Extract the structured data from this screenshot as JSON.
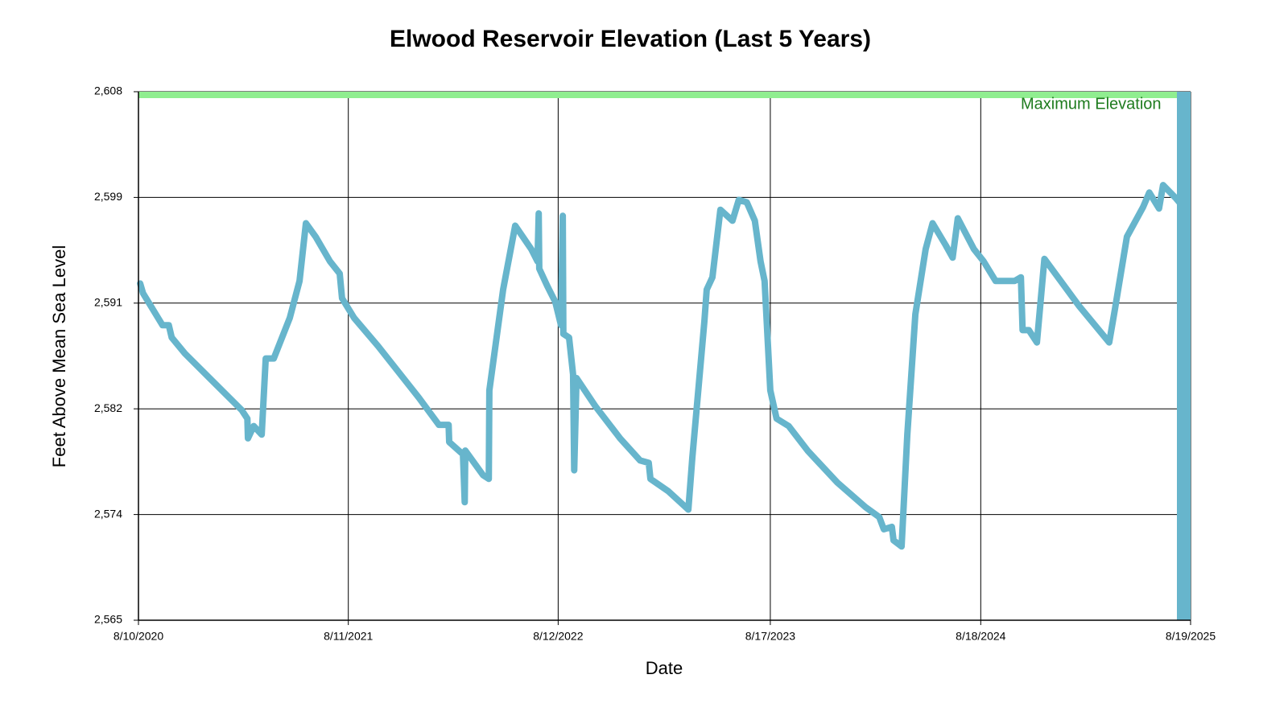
{
  "chart_data": {
    "type": "line",
    "title": "Elwood Reservoir Elevation (Last 5 Years)",
    "x_label": "Date",
    "y_label": "Feet Above Mean Sea Level",
    "x": [
      "2020-08-13",
      "2020-08-18",
      "2020-09-04",
      "2020-09-21",
      "2020-10-02",
      "2020-10-07",
      "2020-10-30",
      "2020-12-12",
      "2021-02-06",
      "2021-02-16",
      "2021-02-17",
      "2021-02-27",
      "2021-03-13",
      "2021-03-20",
      "2021-04-03",
      "2021-05-01",
      "2021-05-18",
      "2021-05-29",
      "2021-06-15",
      "2021-07-10",
      "2021-07-27",
      "2021-07-31",
      "2021-08-21",
      "2021-10-02",
      "2021-12-12",
      "2022-01-16",
      "2022-02-02",
      "2022-02-03",
      "2022-02-27",
      "2022-03-02",
      "2022-03-03",
      "2022-04-03",
      "2022-04-13",
      "2022-04-14",
      "2022-05-08",
      "2022-05-29",
      "2022-06-26",
      "2022-07-07",
      "2022-07-09",
      "2022-07-10",
      "2022-07-24",
      "2022-08-07",
      "2022-08-17",
      "2022-08-20",
      "2022-08-21",
      "2022-08-31",
      "2022-09-07",
      "2022-09-09",
      "2022-09-13",
      "2022-10-16",
      "2022-11-28",
      "2023-01-02",
      "2023-01-17",
      "2023-01-20",
      "2023-02-20",
      "2023-03-27",
      "2023-04-03",
      "2023-04-24",
      "2023-04-28",
      "2023-05-08",
      "2023-05-22",
      "2023-06-12",
      "2023-06-23",
      "2023-07-07",
      "2023-07-21",
      "2023-07-31",
      "2023-08-07",
      "2023-08-17",
      "2023-08-28",
      "2023-09-18",
      "2023-10-21",
      "2023-12-12",
      "2024-01-30",
      "2024-02-23",
      "2024-03-02",
      "2024-03-16",
      "2024-03-19",
      "2024-04-02",
      "2024-04-12",
      "2024-04-26",
      "2024-05-14",
      "2024-05-26",
      "2024-06-18",
      "2024-06-30",
      "2024-07-09",
      "2024-08-06",
      "2024-08-23",
      "2024-09-13",
      "2024-10-16",
      "2024-10-27",
      "2024-10-30",
      "2024-11-10",
      "2024-11-24",
      "2024-12-07",
      "2025-02-05",
      "2025-03-30",
      "2025-04-09",
      "2025-04-30",
      "2025-05-28",
      "2025-06-08",
      "2025-06-25",
      "2025-07-02",
      "2025-07-23",
      "2025-08-03"
    ],
    "series": [
      {
        "name": "Elevation",
        "color": "#67b5cc",
        "values": [
          2592.4,
          2591.6,
          2590.3,
          2589.0,
          2589.0,
          2588.0,
          2586.7,
          2584.7,
          2582.1,
          2581.4,
          2579.8,
          2580.8,
          2580.1,
          2586.3,
          2586.3,
          2589.6,
          2592.6,
          2597.3,
          2596.2,
          2594.2,
          2593.2,
          2591.2,
          2589.6,
          2587.3,
          2583.1,
          2580.9,
          2580.9,
          2579.5,
          2578.5,
          2574.6,
          2578.8,
          2576.8,
          2576.5,
          2583.7,
          2591.9,
          2597.1,
          2595.2,
          2594.2,
          2598.1,
          2593.6,
          2592.2,
          2590.9,
          2589.0,
          2597.9,
          2588.3,
          2588.0,
          2585.0,
          2577.2,
          2584.7,
          2582.4,
          2579.8,
          2578.0,
          2577.8,
          2576.5,
          2575.5,
          2574.0,
          2578.2,
          2589.3,
          2591.9,
          2592.9,
          2598.4,
          2597.5,
          2599.2,
          2599.0,
          2597.5,
          2594.2,
          2592.6,
          2583.7,
          2581.4,
          2580.8,
          2578.8,
          2576.2,
          2574.2,
          2573.4,
          2572.4,
          2572.6,
          2571.5,
          2571.0,
          2580.1,
          2589.9,
          2595.2,
          2597.3,
          2595.5,
          2594.5,
          2597.7,
          2595.2,
          2594.2,
          2592.6,
          2592.6,
          2592.9,
          2588.6,
          2588.6,
          2587.6,
          2594.4,
          2590.6,
          2587.6,
          2590.3,
          2596.2,
          2598.6,
          2599.8,
          2598.5,
          2600.4,
          2599.4,
          2598.8
        ]
      }
    ],
    "max_elevation": 2608,
    "max_elevation_label": "Maximum Elevation",
    "max_elevation_color": "#90ee90",
    "xlim": [
      "2020-08-10",
      "2025-08-19"
    ],
    "xticks": [
      {
        "value": "2020-08-10",
        "label": "8/10/2020"
      },
      {
        "value": "2021-08-11",
        "label": "8/11/2021"
      },
      {
        "value": "2022-08-12",
        "label": "8/12/2022"
      },
      {
        "value": "2023-08-17",
        "label": "8/17/2023"
      },
      {
        "value": "2024-08-18",
        "label": "8/18/2024"
      },
      {
        "value": "2025-08-19",
        "label": "8/19/2025"
      }
    ],
    "ylim": [
      2565,
      2608
    ],
    "yticks": [
      {
        "value": 2565,
        "label": "2,565"
      },
      {
        "value": 2573.6,
        "label": "2,574"
      },
      {
        "value": 2582.2,
        "label": "2,582"
      },
      {
        "value": 2590.8,
        "label": "2,591"
      },
      {
        "value": 2599.4,
        "label": "2,599"
      },
      {
        "value": 2608,
        "label": "2,608"
      }
    ],
    "grid": true
  }
}
